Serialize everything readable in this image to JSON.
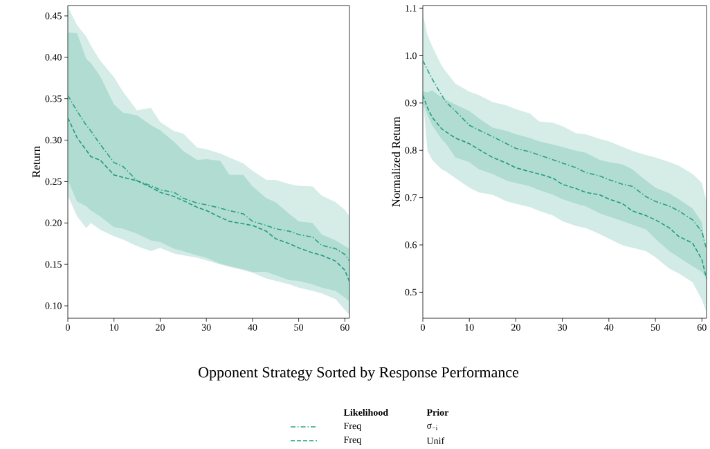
{
  "chart_data": [
    {
      "type": "line",
      "xlabel": "Opponent Strategy Sorted by Response Performance",
      "ylabel": "Return",
      "legend": "bottom",
      "legend_title": "Likelihood",
      "annotations": [
        "Prior",
        "σ$_{−i}$",
        "Unif"
      ],
      "xlim": [
        0,
        61
      ],
      "ylim": [
        0.085,
        0.4625
      ],
      "xticks": [
        0,
        10,
        20,
        30,
        40,
        50,
        60
      ],
      "yticks": [
        {
          "value": 0.1,
          "label": "0.10"
        },
        {
          "value": 0.15,
          "label": "0.15"
        },
        {
          "value": 0.2,
          "label": "0.20"
        },
        {
          "value": 0.25,
          "label": "0.25"
        },
        {
          "value": 0.3,
          "label": "0.30"
        },
        {
          "value": 0.35,
          "label": "0.35"
        },
        {
          "value": 0.4,
          "label": "0.40"
        },
        {
          "value": 0.45,
          "label": "0.45"
        }
      ],
      "x": [
        0,
        2,
        4,
        5,
        7,
        10,
        12,
        15,
        18,
        20,
        23,
        25,
        28,
        30,
        33,
        35,
        38,
        40,
        43,
        45,
        48,
        50,
        53,
        55,
        58,
        60,
        61
      ],
      "series": [
        {
          "name": "Freq",
          "color": "#2ca383",
          "line_style": "dashdot",
          "values": [
            0.354,
            0.335,
            0.318,
            0.311,
            0.295,
            0.273,
            0.268,
            0.251,
            0.245,
            0.24,
            0.237,
            0.23,
            0.224,
            0.222,
            0.218,
            0.215,
            0.211,
            0.202,
            0.197,
            0.193,
            0.19,
            0.186,
            0.183,
            0.173,
            0.169,
            0.162,
            0.154
          ],
          "upper": [
            0.461,
            0.439,
            0.425,
            0.414,
            0.396,
            0.376,
            0.358,
            0.336,
            0.339,
            0.322,
            0.311,
            0.308,
            0.291,
            0.289,
            0.284,
            0.279,
            0.272,
            0.263,
            0.252,
            0.252,
            0.247,
            0.245,
            0.244,
            0.233,
            0.225,
            0.216,
            0.208
          ],
          "lower": [
            0.252,
            0.226,
            0.22,
            0.215,
            0.208,
            0.195,
            0.193,
            0.187,
            0.179,
            0.177,
            0.169,
            0.166,
            0.161,
            0.158,
            0.151,
            0.148,
            0.144,
            0.141,
            0.141,
            0.137,
            0.131,
            0.13,
            0.126,
            0.122,
            0.118,
            0.11,
            0.105
          ]
        },
        {
          "name": "Freq",
          "color": "#1f9a82",
          "line_style": "dashed",
          "values": [
            0.327,
            0.303,
            0.288,
            0.28,
            0.276,
            0.258,
            0.255,
            0.251,
            0.243,
            0.237,
            0.232,
            0.227,
            0.219,
            0.215,
            0.207,
            0.202,
            0.199,
            0.197,
            0.19,
            0.181,
            0.175,
            0.17,
            0.164,
            0.161,
            0.154,
            0.143,
            0.129
          ],
          "upper": [
            0.43,
            0.429,
            0.398,
            0.393,
            0.377,
            0.343,
            0.333,
            0.33,
            0.318,
            0.312,
            0.298,
            0.287,
            0.276,
            0.277,
            0.275,
            0.258,
            0.258,
            0.244,
            0.23,
            0.225,
            0.211,
            0.202,
            0.2,
            0.186,
            0.179,
            0.172,
            0.169
          ],
          "lower": [
            0.233,
            0.208,
            0.194,
            0.2,
            0.192,
            0.184,
            0.18,
            0.172,
            0.166,
            0.17,
            0.163,
            0.161,
            0.158,
            0.155,
            0.15,
            0.147,
            0.143,
            0.14,
            0.133,
            0.13,
            0.126,
            0.122,
            0.118,
            0.115,
            0.108,
            0.095,
            0.089
          ]
        }
      ]
    },
    {
      "type": "line",
      "ylabel": "Normalized Return",
      "xlim": [
        0,
        61
      ],
      "ylim": [
        0.445,
        1.106
      ],
      "xticks": [
        0,
        10,
        20,
        30,
        40,
        50,
        60
      ],
      "yticks": [
        0.5,
        0.6,
        0.7,
        0.8,
        0.9,
        {
          "value": 1.0,
          "label": "1.0"
        },
        1.1
      ],
      "x": [
        0,
        1,
        2,
        4,
        5,
        7,
        10,
        12,
        15,
        18,
        20,
        23,
        25,
        28,
        30,
        33,
        35,
        38,
        40,
        43,
        45,
        48,
        50,
        53,
        55,
        58,
        60,
        61
      ],
      "series": [
        {
          "color": "#2ca383",
          "line_style": "dashdot",
          "values": [
            0.99,
            0.97,
            0.951,
            0.917,
            0.902,
            0.883,
            0.853,
            0.843,
            0.829,
            0.814,
            0.804,
            0.797,
            0.79,
            0.78,
            0.773,
            0.763,
            0.753,
            0.746,
            0.738,
            0.728,
            0.724,
            0.702,
            0.692,
            0.682,
            0.672,
            0.653,
            0.628,
            0.591
          ],
          "upper": [
            1.088,
            1.044,
            1.02,
            0.98,
            0.966,
            0.941,
            0.924,
            0.917,
            0.902,
            0.895,
            0.887,
            0.878,
            0.861,
            0.858,
            0.851,
            0.836,
            0.834,
            0.824,
            0.819,
            0.807,
            0.799,
            0.79,
            0.785,
            0.775,
            0.768,
            0.75,
            0.731,
            0.692
          ],
          "lower": [
            0.902,
            0.875,
            0.853,
            0.824,
            0.814,
            0.785,
            0.775,
            0.76,
            0.75,
            0.736,
            0.731,
            0.724,
            0.716,
            0.706,
            0.697,
            0.687,
            0.682,
            0.667,
            0.66,
            0.65,
            0.643,
            0.633,
            0.613,
            0.587,
            0.574,
            0.555,
            0.543,
            0.528
          ]
        },
        {
          "color": "#1f9a82",
          "line_style": "dashed",
          "values": [
            0.917,
            0.89,
            0.87,
            0.846,
            0.839,
            0.826,
            0.814,
            0.802,
            0.785,
            0.773,
            0.763,
            0.755,
            0.75,
            0.741,
            0.728,
            0.719,
            0.711,
            0.706,
            0.697,
            0.687,
            0.672,
            0.662,
            0.653,
            0.636,
            0.618,
            0.604,
            0.569,
            0.528
          ],
          "upper": [
            0.925,
            0.922,
            0.927,
            0.912,
            0.907,
            0.897,
            0.883,
            0.868,
            0.848,
            0.841,
            0.834,
            0.826,
            0.819,
            0.812,
            0.807,
            0.799,
            0.795,
            0.78,
            0.775,
            0.77,
            0.76,
            0.736,
            0.721,
            0.709,
            0.697,
            0.677,
            0.648,
            0.579
          ],
          "lower": [
            0.912,
            0.799,
            0.78,
            0.76,
            0.755,
            0.741,
            0.721,
            0.711,
            0.706,
            0.692,
            0.687,
            0.68,
            0.672,
            0.662,
            0.65,
            0.64,
            0.636,
            0.623,
            0.613,
            0.599,
            0.594,
            0.587,
            0.574,
            0.55,
            0.54,
            0.521,
            0.484,
            0.457
          ]
        }
      ]
    }
  ]
}
